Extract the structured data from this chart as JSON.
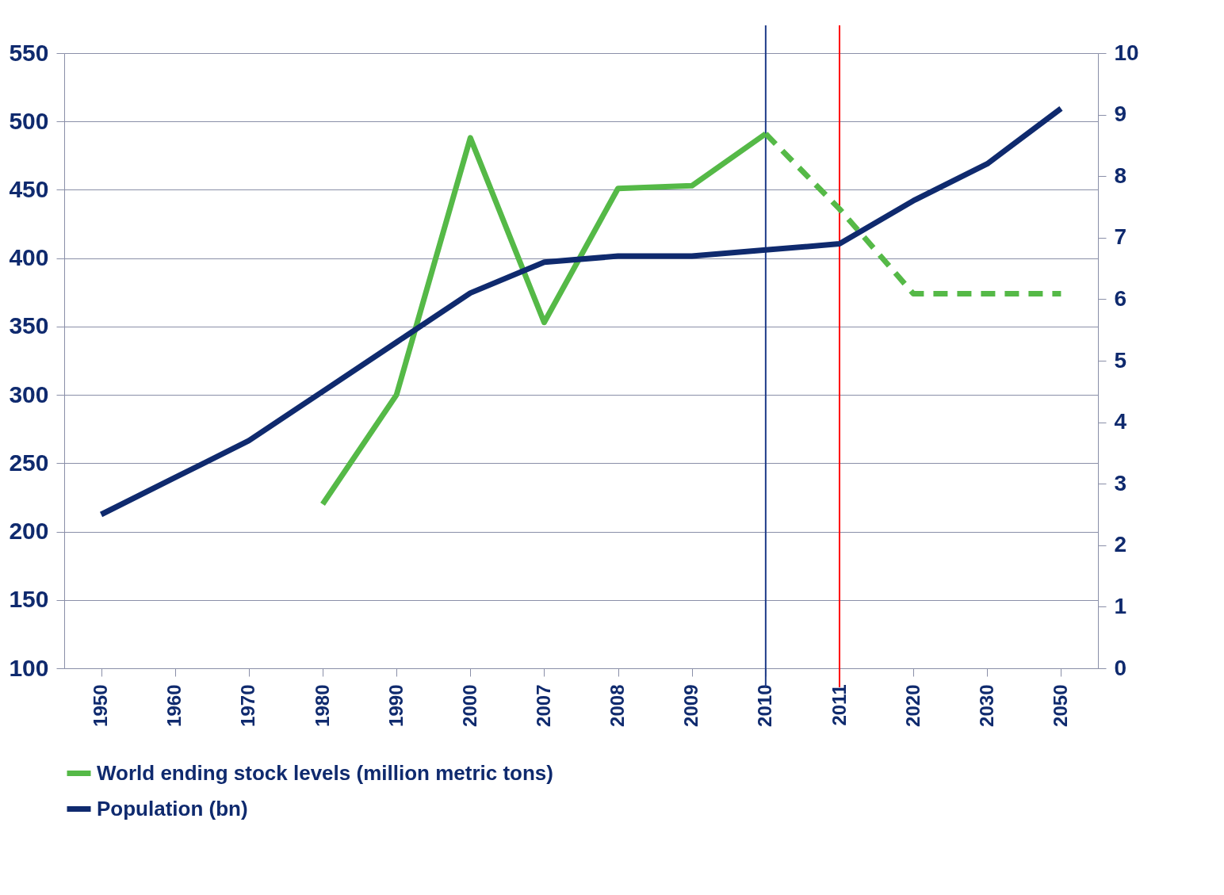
{
  "chart_data": {
    "type": "line",
    "categories": [
      "1950",
      "1960",
      "1970",
      "1980",
      "1990",
      "2000",
      "2007",
      "2008",
      "2009",
      "2010",
      "2011",
      "2020",
      "2030",
      "2050"
    ],
    "series": [
      {
        "name": "World ending stock levels (million metric tons)",
        "color": "#55b947",
        "line_style": "solid",
        "values": [
          null,
          null,
          null,
          220,
          300,
          488,
          353,
          451,
          453,
          491,
          null,
          null,
          null,
          null
        ]
      },
      {
        "color": "#55b947",
        "line_style": "dashed",
        "values": [
          null,
          null,
          null,
          null,
          null,
          null,
          null,
          null,
          null,
          491,
          436,
          374,
          374,
          374
        ]
      },
      {
        "name": "Population (bn)",
        "color": "#0f2a6e",
        "axis": "y2",
        "line_style": "solid",
        "values": [
          2.5,
          3.1,
          3.7,
          4.5,
          5.3,
          6.1,
          6.6,
          6.7,
          6.7,
          6.8,
          6.9,
          7.6,
          8.2,
          9.1
        ]
      }
    ],
    "ylim": [
      100,
      550
    ],
    "yticks": [
      100,
      150,
      200,
      250,
      300,
      350,
      400,
      450,
      500,
      550
    ],
    "y2lim": [
      0,
      10
    ],
    "y2ticks": [
      0,
      1,
      2,
      3,
      4,
      5,
      6,
      7,
      8,
      9,
      10
    ],
    "ref_lines": [
      {
        "axis": "x",
        "value": "2010",
        "color": "#1f3c88"
      },
      {
        "axis": "x",
        "value": "2011",
        "color": "#ff0000"
      }
    ],
    "grid": "y",
    "legend": "bottom",
    "marker": "none"
  }
}
